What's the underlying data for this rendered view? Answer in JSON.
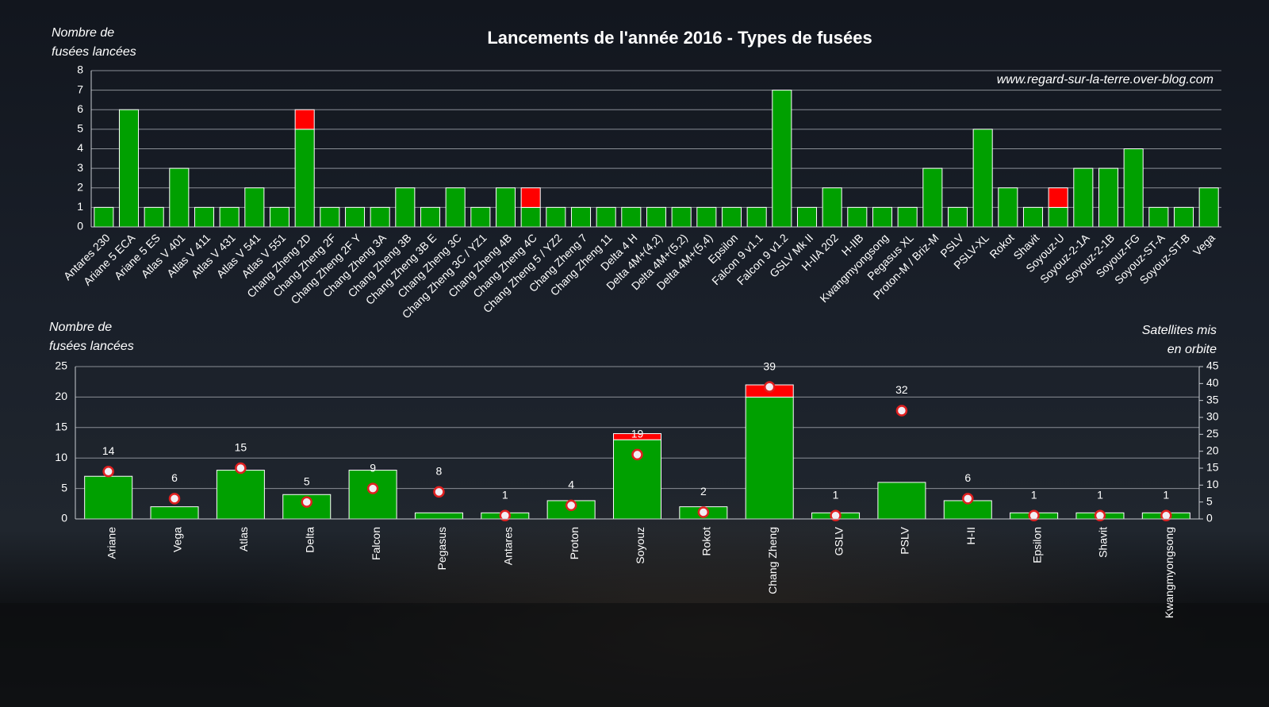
{
  "chart_data": [
    {
      "type": "bar",
      "stacked": true,
      "title": "Lancements de l'année 2016 - Types de fusées",
      "annotation": "www.regard-sur-la-terre.over-blog.com",
      "y_label": [
        "Nombre de",
        "fusées lancées"
      ],
      "categories": [
        "Antares 230",
        "Ariane 5 ECA",
        "Ariane 5 ES",
        "Atlas V 401",
        "Atlas V 411",
        "Atlas V 431",
        "Atlas V 541",
        "Atlas V 551",
        "Chang Zheng 2D",
        "Chang Zheng 2F",
        "Chang Zheng 2F Y",
        "Chang Zheng 3A",
        "Chang Zheng 3B",
        "Chang Zheng 3B E",
        "Chang Zheng 3C",
        "Chang Zheng 3C / YZ1",
        "Chang Zheng 4B",
        "Chang Zheng 4C",
        "Chang Zheng 5 / YZ2",
        "Chang Zheng 7",
        "Chang Zheng 11",
        "Delta 4 H",
        "Delta 4M+(4,2)",
        "Delta 4M+(5,2)",
        "Delta 4M+(5,4)",
        "Epsilon",
        "Falcon 9 v1.1",
        "Falcon 9 v1.2",
        "GSLV Mk II",
        "H-IIA 202",
        "H-IIB",
        "Kwangmyongsong",
        "Pegasus XL",
        "Proton-M / Briz-M",
        "PSLV",
        "PSLV-XL",
        "Rokot",
        "Shavit",
        "Soyouz-U",
        "Soyouz-2-1A",
        "Soyouz-2-1B",
        "Soyouz-FG",
        "Soyouz-ST-A",
        "Soyouz-ST-B",
        "Vega"
      ],
      "series": [
        {
          "color": "#00a000",
          "values": [
            1,
            6,
            1,
            3,
            1,
            1,
            2,
            1,
            5,
            1,
            1,
            1,
            2,
            1,
            2,
            1,
            2,
            1,
            1,
            1,
            1,
            1,
            1,
            1,
            1,
            1,
            1,
            7,
            1,
            2,
            1,
            1,
            1,
            3,
            1,
            5,
            2,
            1,
            1,
            3,
            3,
            4,
            1,
            1,
            2
          ]
        },
        {
          "color": "#ff0000",
          "values": [
            0,
            0,
            0,
            0,
            0,
            0,
            0,
            0,
            1,
            0,
            0,
            0,
            0,
            0,
            0,
            0,
            0,
            1,
            0,
            0,
            0,
            0,
            0,
            0,
            0,
            0,
            0,
            0,
            0,
            0,
            0,
            0,
            0,
            0,
            0,
            0,
            0,
            0,
            1,
            0,
            0,
            0,
            0,
            0,
            0
          ]
        }
      ],
      "ylim": [
        0,
        8
      ],
      "yticks": [
        0,
        1,
        2,
        3,
        4,
        5,
        6,
        7,
        8
      ],
      "grid": true
    },
    {
      "type": "bar",
      "stacked": true,
      "y_label": [
        "Nombre de",
        "fusées lancées"
      ],
      "y2_label": [
        "Satellites mis",
        "en orbite"
      ],
      "categories": [
        "Ariane",
        "Vega",
        "Atlas",
        "Delta",
        "Falcon",
        "Pegasus",
        "Antares",
        "Proton",
        "Soyouz",
        "Rokot",
        "Chang Zheng",
        "GSLV",
        "PSLV",
        "H-II",
        "Epsilon",
        "Shavit",
        "Kwangmyongsong"
      ],
      "series": [
        {
          "color": "#00a000",
          "values": [
            7,
            2,
            8,
            4,
            8,
            1,
            1,
            3,
            13,
            2,
            20,
            1,
            6,
            3,
            1,
            1,
            1
          ]
        },
        {
          "color": "#ff0000",
          "values": [
            0,
            0,
            0,
            0,
            0,
            0,
            0,
            0,
            1,
            0,
            2,
            0,
            0,
            0,
            0,
            0,
            0
          ]
        },
        {
          "type": "scatter",
          "axis": "y2",
          "color": "#f2eef4",
          "values": [
            14,
            6,
            15,
            5,
            9,
            8,
            1,
            4,
            19,
            2,
            39,
            1,
            32,
            6,
            1,
            1,
            1
          ]
        }
      ],
      "ylim": [
        0,
        25
      ],
      "yticks": [
        0,
        5,
        10,
        15,
        20,
        25
      ],
      "y2lim": [
        0,
        45
      ],
      "y2ticks": [
        0,
        5,
        10,
        15,
        20,
        25,
        30,
        35,
        40,
        45
      ],
      "grid": true
    }
  ]
}
